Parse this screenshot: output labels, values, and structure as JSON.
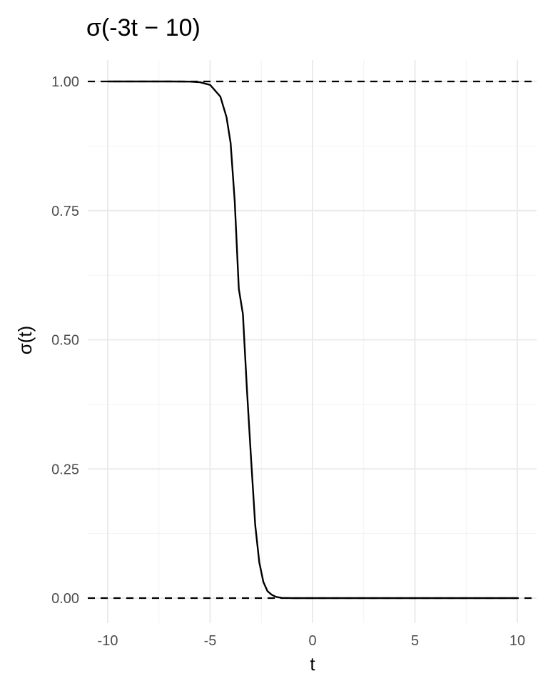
{
  "chart_data": {
    "type": "line",
    "title": "σ(-3t − 10)",
    "xlabel": "t",
    "ylabel": "σ(t)",
    "xlim": [
      -10,
      10
    ],
    "ylim": [
      0,
      1
    ],
    "x_ticks": [
      -10,
      -5,
      0,
      5,
      10
    ],
    "x_tick_labels": [
      "-10",
      "-5",
      "0",
      "5",
      "10"
    ],
    "y_ticks": [
      0,
      0.25,
      0.5,
      0.75,
      1
    ],
    "y_tick_labels": [
      "0.00",
      "0.25",
      "0.50",
      "0.75",
      "1.00"
    ],
    "grid": true,
    "reference_lines": [
      {
        "y": 1,
        "style": "dashed",
        "color": "#000000"
      },
      {
        "y": 0,
        "style": "dashed",
        "color": "#000000"
      }
    ],
    "series": [
      {
        "color": "#000000",
        "x": [
          -10,
          -9,
          -8,
          -7,
          -6,
          -5.5,
          -5,
          -4.5,
          -4.2,
          -4,
          -3.8,
          -3.6,
          -3.4,
          -3.333,
          -3.2,
          -3.0,
          -2.8,
          -2.6,
          -2.4,
          -2.2,
          -2.0,
          -1.8,
          -1.5,
          -1.0,
          0,
          5,
          10
        ],
        "y": [
          1.0,
          1.0,
          1.0,
          1.0,
          0.9997,
          0.9985,
          0.9933,
          0.9707,
          0.9309,
          0.8808,
          0.7685,
          0.5987,
          0.5498,
          0.5,
          0.4013,
          0.2689,
          0.1419,
          0.0691,
          0.0312,
          0.0135,
          0.0067,
          0.0026,
          0.0005,
          0.0,
          0.0,
          0.0,
          0.0
        ]
      }
    ]
  },
  "colors": {
    "background": "#ffffff",
    "grid_major": "#ebebeb",
    "grid_minor": "#f2f2f2",
    "tick_text": "#4d4d4d",
    "line": "#000000"
  }
}
